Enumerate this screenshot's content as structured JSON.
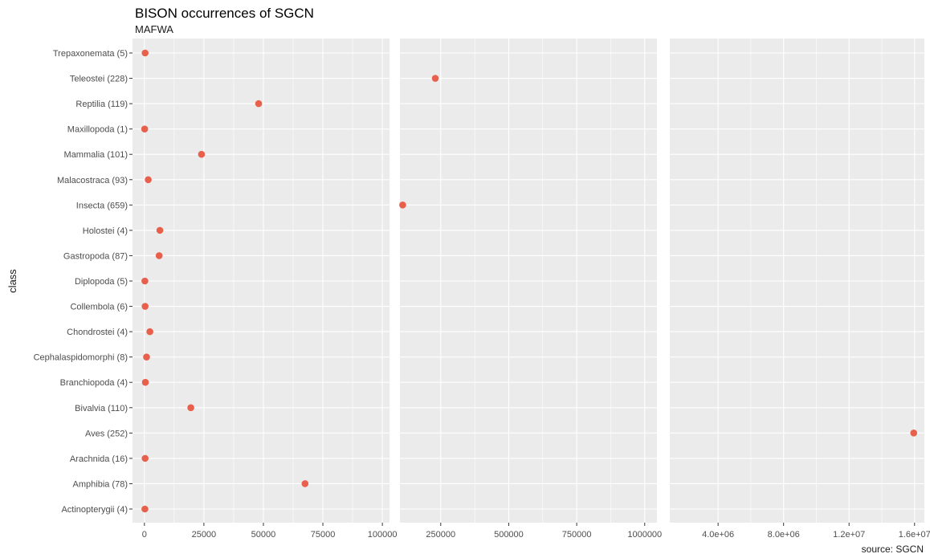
{
  "chart_data": {
    "type": "scatter",
    "title": "BISON occurrences of SGCN",
    "subtitle": "MAFWA",
    "caption": "source: SGCN",
    "xlabel": "",
    "ylabel": "class",
    "point_color": "#E8604C",
    "panel_background": "#EBEBEB",
    "grid": true,
    "legend": "none",
    "categories": [
      "Trepaxonemata (5)",
      "Teleostei (228)",
      "Reptilia (119)",
      "Maxillopoda (1)",
      "Mammalia (101)",
      "Malacostraca (93)",
      "Insecta (659)",
      "Holostei (4)",
      "Gastropoda (87)",
      "Diplopoda (5)",
      "Collembola (6)",
      "Chondrostei (4)",
      "Cephalaspidomorphi (8)",
      "Branchiopoda (4)",
      "Bivalvia (110)",
      "Aves (252)",
      "Arachnida (16)",
      "Amphibia (78)",
      "Actinopterygii (4)"
    ],
    "panels": [
      {
        "xlim": [
          -5000,
          103000
        ],
        "xticks": [
          0,
          25000,
          50000,
          75000,
          100000
        ],
        "xtick_labels": [
          "0",
          "25000",
          "50000",
          "75000",
          "100000"
        ],
        "points": [
          {
            "category": "Trepaxonemata (5)",
            "x": 300
          },
          {
            "category": "Reptilia (119)",
            "x": 48000
          },
          {
            "category": "Maxillopoda (1)",
            "x": 100
          },
          {
            "category": "Mammalia (101)",
            "x": 24000
          },
          {
            "category": "Malacostraca (93)",
            "x": 1600
          },
          {
            "category": "Holostei (4)",
            "x": 6500
          },
          {
            "category": "Gastropoda (87)",
            "x": 6200
          },
          {
            "category": "Diplopoda (5)",
            "x": 200
          },
          {
            "category": "Collembola (6)",
            "x": 300
          },
          {
            "category": "Chondrostei (4)",
            "x": 2300
          },
          {
            "category": "Cephalaspidomorphi (8)",
            "x": 900
          },
          {
            "category": "Branchiopoda (4)",
            "x": 400
          },
          {
            "category": "Bivalvia (110)",
            "x": 19500
          },
          {
            "category": "Arachnida (16)",
            "x": 300
          },
          {
            "category": "Amphibia (78)",
            "x": 67500
          },
          {
            "category": "Actinopterygii (4)",
            "x": 200
          }
        ]
      },
      {
        "xlim": [
          100000,
          1045000
        ],
        "xticks": [
          250000,
          500000,
          750000,
          1000000
        ],
        "xtick_labels": [
          "250000",
          "500000",
          "750000",
          "1000000"
        ],
        "points": [
          {
            "category": "Teleostei (228)",
            "x": 230000
          },
          {
            "category": "Insecta (659)",
            "x": 110000
          }
        ]
      },
      {
        "xlim": [
          1050000,
          16600000
        ],
        "xticks": [
          4000000,
          8000000,
          12000000,
          16000000
        ],
        "xtick_labels": [
          "4.0e+06",
          "8.0e+06",
          "1.2e+07",
          "1.6e+07"
        ],
        "points": [
          {
            "category": "Aves (252)",
            "x": 15950000
          }
        ]
      }
    ]
  }
}
